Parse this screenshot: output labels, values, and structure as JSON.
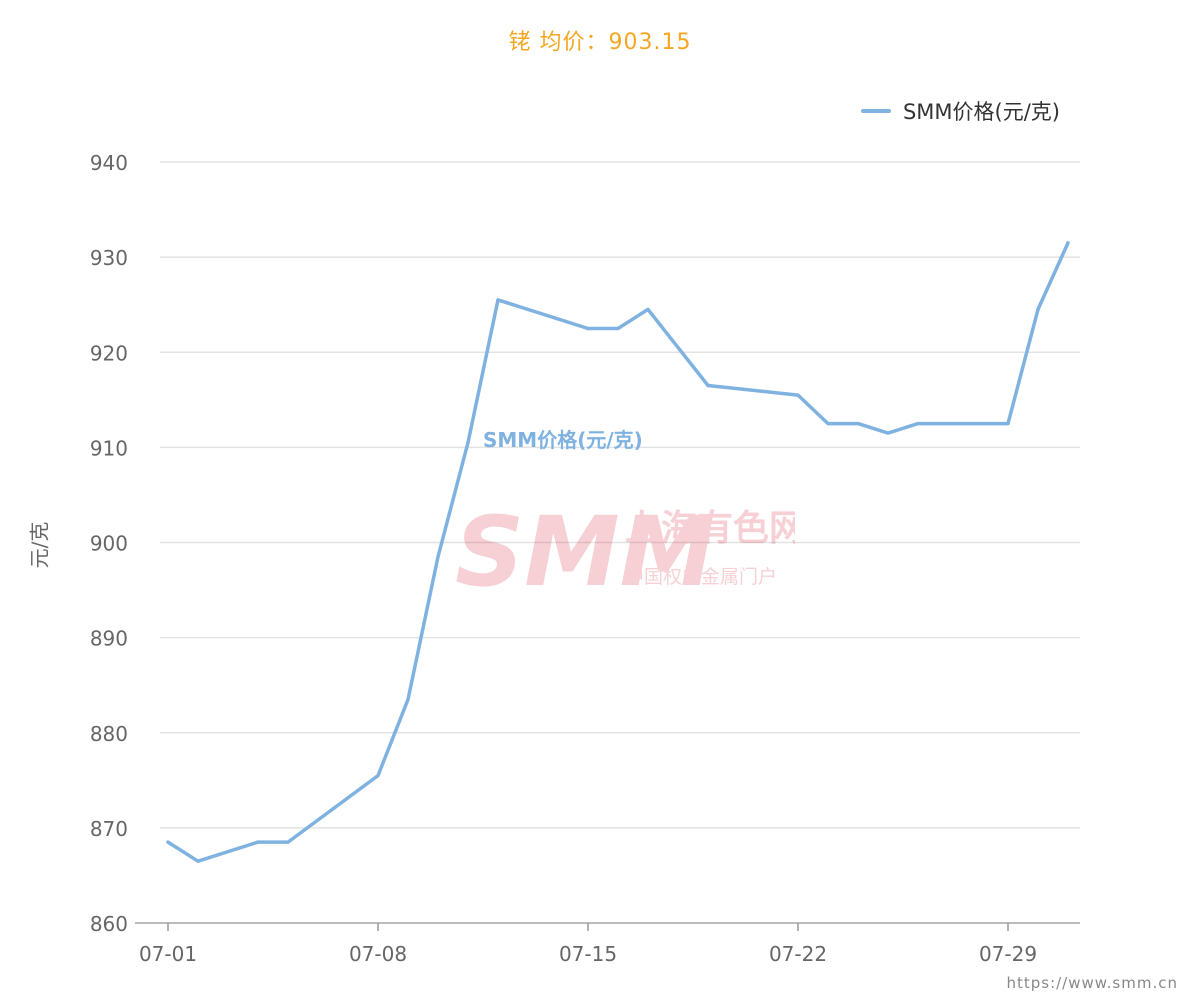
{
  "title": "铑 均价：903.15",
  "legend": {
    "label": "SMM价格(元/克)"
  },
  "footer": "https://www.smm.cn",
  "watermark": {
    "brand": "SMM",
    "cn": "上海有色网",
    "tagline": "中国权威金属门户"
  },
  "colors": {
    "line": "#7FB2E0",
    "title": "#F5A623",
    "grid": "#E3E3E3",
    "axis": "#999999",
    "tick_text": "#666666"
  },
  "chart_data": {
    "type": "line",
    "title": "铑 均价：903.15",
    "ylabel": "元/克",
    "xlabel": "",
    "ylim": [
      860,
      940
    ],
    "yticks": [
      860,
      870,
      880,
      890,
      900,
      910,
      920,
      930,
      940
    ],
    "xticks": [
      "07-01",
      "07-08",
      "07-15",
      "07-22",
      "07-29"
    ],
    "grid": true,
    "legend_position": "top-right",
    "series_label": "SMM价格(元/克)",
    "series": [
      {
        "name": "SMM价格(元/克)",
        "x": [
          "07-01",
          "07-02",
          "07-04",
          "07-05",
          "07-08",
          "07-09",
          "07-10",
          "07-11",
          "07-12",
          "07-15",
          "07-16",
          "07-17",
          "07-19",
          "07-22",
          "07-23",
          "07-24",
          "07-25",
          "07-26",
          "07-29",
          "07-30",
          "07-31"
        ],
        "values": [
          868.5,
          866.5,
          868.5,
          868.5,
          875.5,
          883.5,
          898.5,
          910.5,
          925.5,
          922.5,
          922.5,
          924.5,
          916.5,
          915.5,
          912.5,
          912.5,
          911.5,
          912.5,
          912.5,
          924.5,
          931.5
        ]
      }
    ]
  }
}
